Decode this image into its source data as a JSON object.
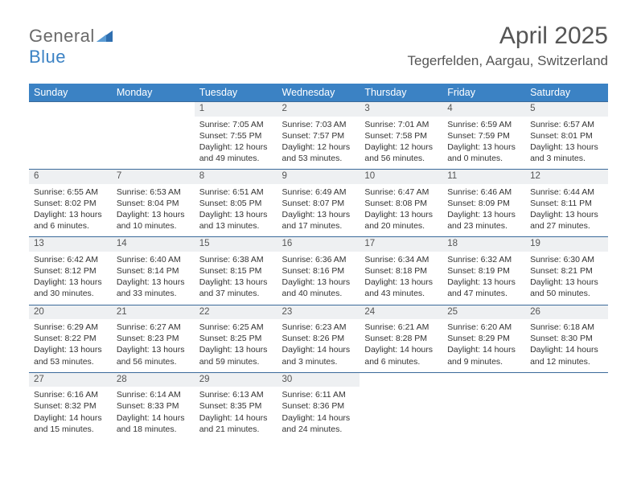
{
  "logo": {
    "part1": "General",
    "part2": "Blue"
  },
  "title": "April 2025",
  "location": "Tegerfelden, Aargau, Switzerland",
  "colors": {
    "header_bg": "#3b82c4",
    "header_text": "#ffffff",
    "daynum_bg": "#eef0f2",
    "row_border": "#3b6a9a",
    "logo_gray": "#6a6a6a",
    "logo_blue": "#3b82c4"
  },
  "typography": {
    "title_fontsize": 30,
    "location_fontsize": 17,
    "dayheader_fontsize": 12.5,
    "daynum_fontsize": 11.5,
    "body_fontsize": 10.5
  },
  "day_headers": [
    "Sunday",
    "Monday",
    "Tuesday",
    "Wednesday",
    "Thursday",
    "Friday",
    "Saturday"
  ],
  "weeks": [
    {
      "nums": [
        "",
        "",
        "1",
        "2",
        "3",
        "4",
        "5"
      ],
      "cells": [
        null,
        null,
        {
          "sunrise": "Sunrise: 7:05 AM",
          "sunset": "Sunset: 7:55 PM",
          "day1": "Daylight: 12 hours",
          "day2": "and 49 minutes."
        },
        {
          "sunrise": "Sunrise: 7:03 AM",
          "sunset": "Sunset: 7:57 PM",
          "day1": "Daylight: 12 hours",
          "day2": "and 53 minutes."
        },
        {
          "sunrise": "Sunrise: 7:01 AM",
          "sunset": "Sunset: 7:58 PM",
          "day1": "Daylight: 12 hours",
          "day2": "and 56 minutes."
        },
        {
          "sunrise": "Sunrise: 6:59 AM",
          "sunset": "Sunset: 7:59 PM",
          "day1": "Daylight: 13 hours",
          "day2": "and 0 minutes."
        },
        {
          "sunrise": "Sunrise: 6:57 AM",
          "sunset": "Sunset: 8:01 PM",
          "day1": "Daylight: 13 hours",
          "day2": "and 3 minutes."
        }
      ]
    },
    {
      "nums": [
        "6",
        "7",
        "8",
        "9",
        "10",
        "11",
        "12"
      ],
      "cells": [
        {
          "sunrise": "Sunrise: 6:55 AM",
          "sunset": "Sunset: 8:02 PM",
          "day1": "Daylight: 13 hours",
          "day2": "and 6 minutes."
        },
        {
          "sunrise": "Sunrise: 6:53 AM",
          "sunset": "Sunset: 8:04 PM",
          "day1": "Daylight: 13 hours",
          "day2": "and 10 minutes."
        },
        {
          "sunrise": "Sunrise: 6:51 AM",
          "sunset": "Sunset: 8:05 PM",
          "day1": "Daylight: 13 hours",
          "day2": "and 13 minutes."
        },
        {
          "sunrise": "Sunrise: 6:49 AM",
          "sunset": "Sunset: 8:07 PM",
          "day1": "Daylight: 13 hours",
          "day2": "and 17 minutes."
        },
        {
          "sunrise": "Sunrise: 6:47 AM",
          "sunset": "Sunset: 8:08 PM",
          "day1": "Daylight: 13 hours",
          "day2": "and 20 minutes."
        },
        {
          "sunrise": "Sunrise: 6:46 AM",
          "sunset": "Sunset: 8:09 PM",
          "day1": "Daylight: 13 hours",
          "day2": "and 23 minutes."
        },
        {
          "sunrise": "Sunrise: 6:44 AM",
          "sunset": "Sunset: 8:11 PM",
          "day1": "Daylight: 13 hours",
          "day2": "and 27 minutes."
        }
      ]
    },
    {
      "nums": [
        "13",
        "14",
        "15",
        "16",
        "17",
        "18",
        "19"
      ],
      "cells": [
        {
          "sunrise": "Sunrise: 6:42 AM",
          "sunset": "Sunset: 8:12 PM",
          "day1": "Daylight: 13 hours",
          "day2": "and 30 minutes."
        },
        {
          "sunrise": "Sunrise: 6:40 AM",
          "sunset": "Sunset: 8:14 PM",
          "day1": "Daylight: 13 hours",
          "day2": "and 33 minutes."
        },
        {
          "sunrise": "Sunrise: 6:38 AM",
          "sunset": "Sunset: 8:15 PM",
          "day1": "Daylight: 13 hours",
          "day2": "and 37 minutes."
        },
        {
          "sunrise": "Sunrise: 6:36 AM",
          "sunset": "Sunset: 8:16 PM",
          "day1": "Daylight: 13 hours",
          "day2": "and 40 minutes."
        },
        {
          "sunrise": "Sunrise: 6:34 AM",
          "sunset": "Sunset: 8:18 PM",
          "day1": "Daylight: 13 hours",
          "day2": "and 43 minutes."
        },
        {
          "sunrise": "Sunrise: 6:32 AM",
          "sunset": "Sunset: 8:19 PM",
          "day1": "Daylight: 13 hours",
          "day2": "and 47 minutes."
        },
        {
          "sunrise": "Sunrise: 6:30 AM",
          "sunset": "Sunset: 8:21 PM",
          "day1": "Daylight: 13 hours",
          "day2": "and 50 minutes."
        }
      ]
    },
    {
      "nums": [
        "20",
        "21",
        "22",
        "23",
        "24",
        "25",
        "26"
      ],
      "cells": [
        {
          "sunrise": "Sunrise: 6:29 AM",
          "sunset": "Sunset: 8:22 PM",
          "day1": "Daylight: 13 hours",
          "day2": "and 53 minutes."
        },
        {
          "sunrise": "Sunrise: 6:27 AM",
          "sunset": "Sunset: 8:23 PM",
          "day1": "Daylight: 13 hours",
          "day2": "and 56 minutes."
        },
        {
          "sunrise": "Sunrise: 6:25 AM",
          "sunset": "Sunset: 8:25 PM",
          "day1": "Daylight: 13 hours",
          "day2": "and 59 minutes."
        },
        {
          "sunrise": "Sunrise: 6:23 AM",
          "sunset": "Sunset: 8:26 PM",
          "day1": "Daylight: 14 hours",
          "day2": "and 3 minutes."
        },
        {
          "sunrise": "Sunrise: 6:21 AM",
          "sunset": "Sunset: 8:28 PM",
          "day1": "Daylight: 14 hours",
          "day2": "and 6 minutes."
        },
        {
          "sunrise": "Sunrise: 6:20 AM",
          "sunset": "Sunset: 8:29 PM",
          "day1": "Daylight: 14 hours",
          "day2": "and 9 minutes."
        },
        {
          "sunrise": "Sunrise: 6:18 AM",
          "sunset": "Sunset: 8:30 PM",
          "day1": "Daylight: 14 hours",
          "day2": "and 12 minutes."
        }
      ]
    },
    {
      "nums": [
        "27",
        "28",
        "29",
        "30",
        "",
        "",
        ""
      ],
      "cells": [
        {
          "sunrise": "Sunrise: 6:16 AM",
          "sunset": "Sunset: 8:32 PM",
          "day1": "Daylight: 14 hours",
          "day2": "and 15 minutes."
        },
        {
          "sunrise": "Sunrise: 6:14 AM",
          "sunset": "Sunset: 8:33 PM",
          "day1": "Daylight: 14 hours",
          "day2": "and 18 minutes."
        },
        {
          "sunrise": "Sunrise: 6:13 AM",
          "sunset": "Sunset: 8:35 PM",
          "day1": "Daylight: 14 hours",
          "day2": "and 21 minutes."
        },
        {
          "sunrise": "Sunrise: 6:11 AM",
          "sunset": "Sunset: 8:36 PM",
          "day1": "Daylight: 14 hours",
          "day2": "and 24 minutes."
        },
        null,
        null,
        null
      ]
    }
  ]
}
